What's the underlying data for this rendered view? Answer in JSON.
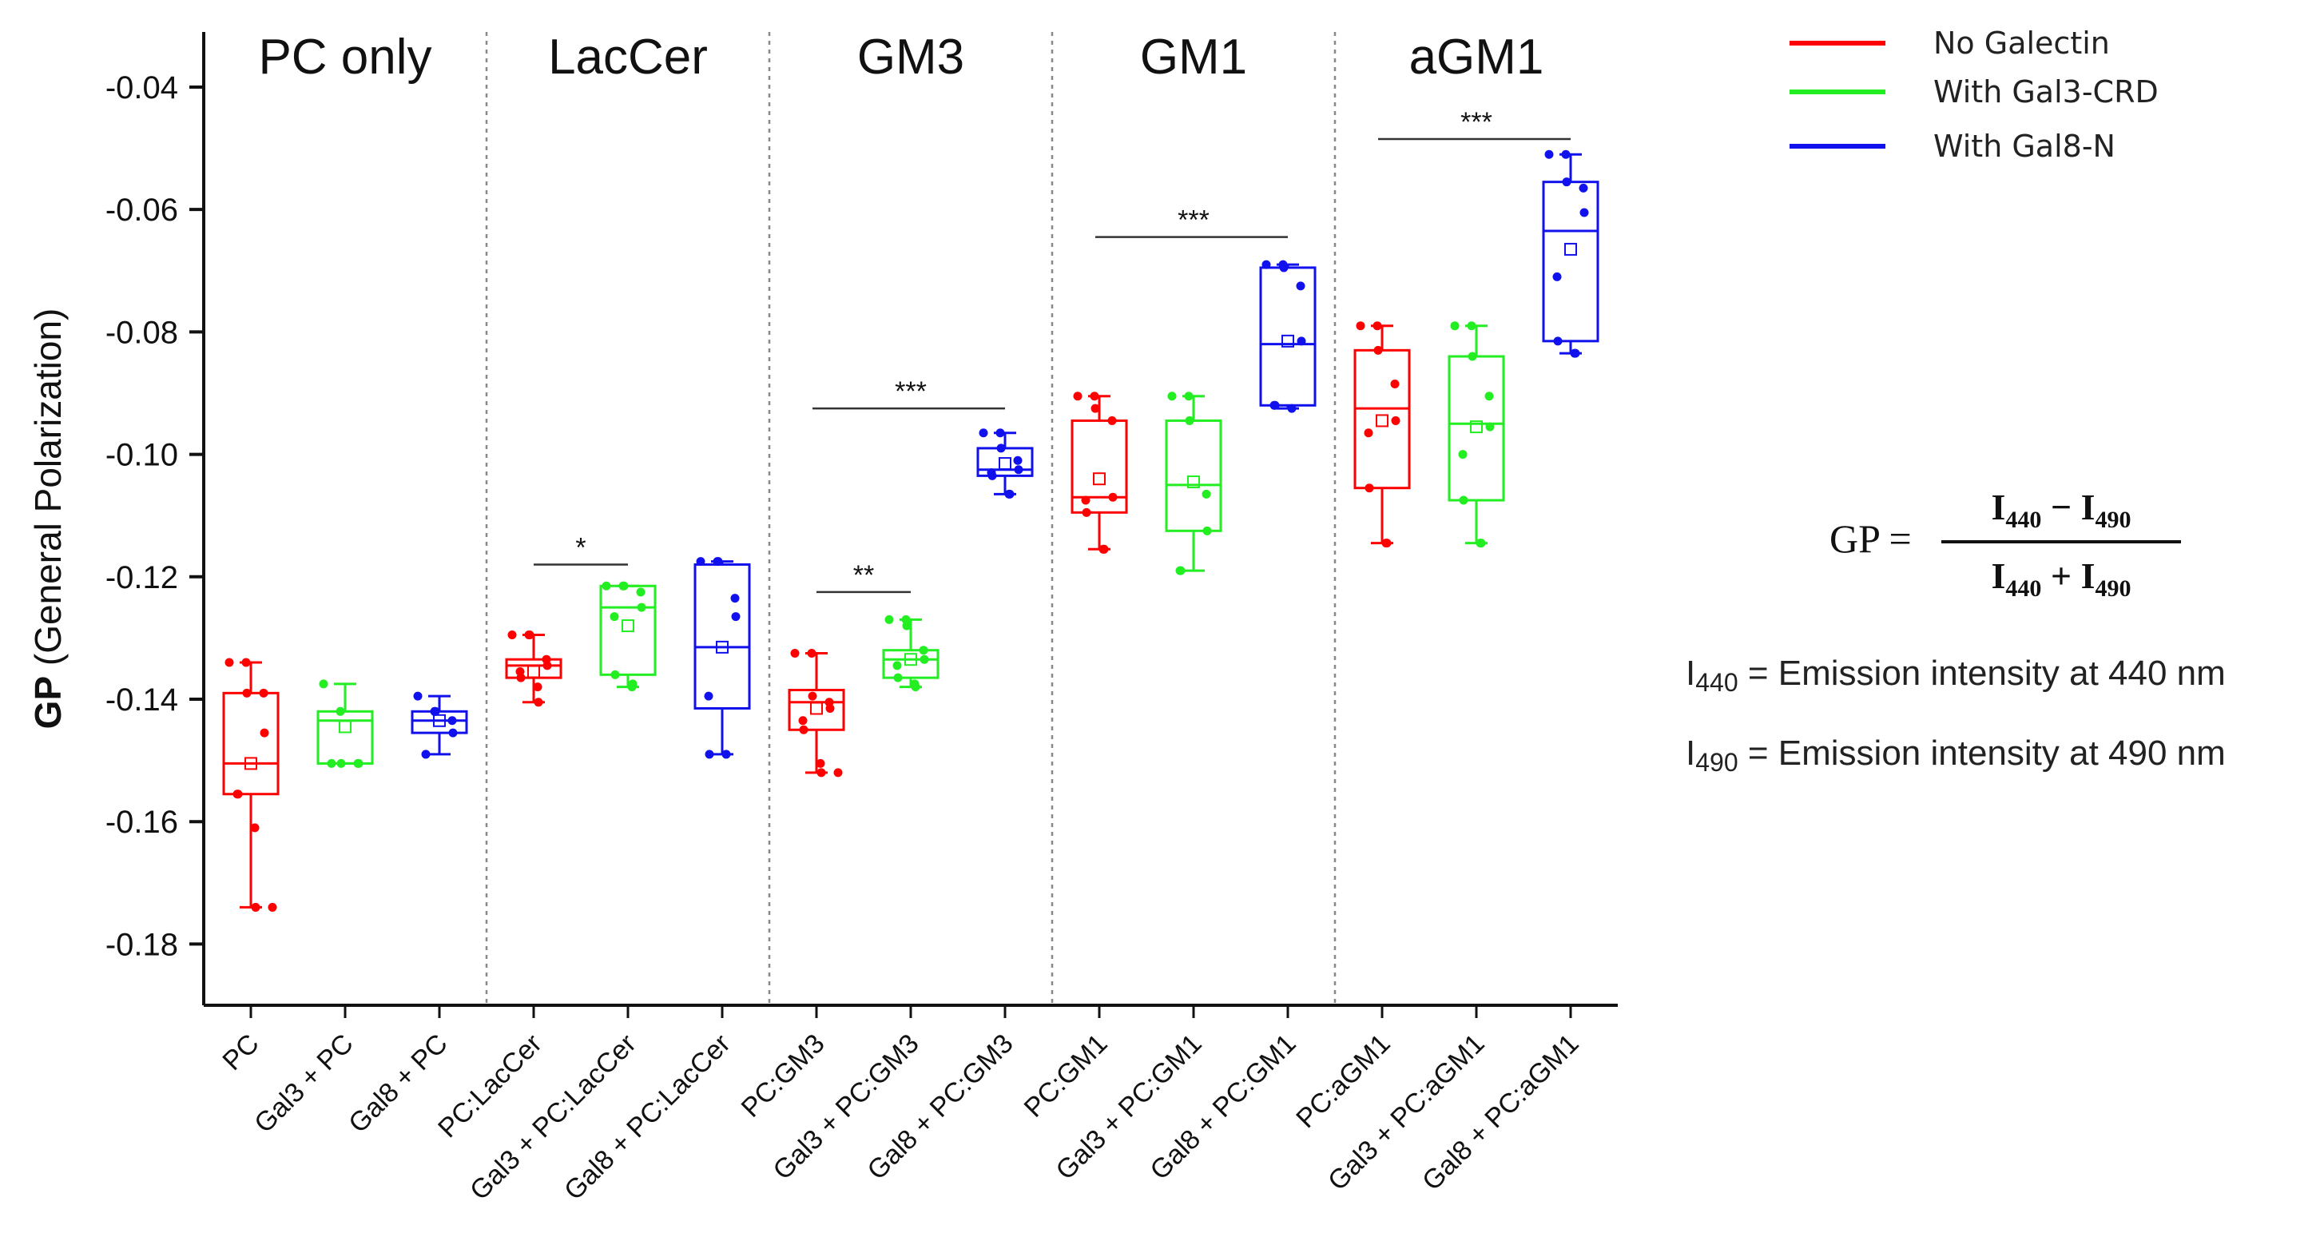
{
  "chart_data": {
    "type": "box",
    "ylabel_bold": "GP",
    "ylabel_rest": "(General Polarization)",
    "ylim": [
      -0.19,
      -0.031
    ],
    "yticks": [
      -0.04,
      -0.06,
      -0.08,
      -0.1,
      -0.12,
      -0.14,
      -0.16,
      -0.18
    ],
    "ytick_labels": [
      "-0.04",
      "-0.06",
      "-0.08",
      "-0.10",
      "-0.12",
      "-0.14",
      "-0.16",
      "-0.18"
    ],
    "groups": [
      "PC only",
      "LacCer",
      "GM3",
      "GM1",
      "aGM1"
    ],
    "colors": {
      "No Galectin": "#ff0000",
      "With Gal3-CRD": "#22ee22",
      "With Gal8-N": "#1111ee"
    },
    "legend": [
      "No Galectin",
      "With Gal3-CRD",
      "With Gal8-N"
    ],
    "categories": [
      {
        "label": "PC",
        "series": "No Galectin",
        "q1": -0.1555,
        "median": -0.1505,
        "q3": -0.139,
        "mean": -0.1505,
        "whisker_low": -0.174,
        "whisker_high": -0.134,
        "points": [
          -0.134,
          -0.134,
          -0.139,
          -0.139,
          -0.1455,
          -0.1555,
          -0.1555,
          -0.161,
          -0.174,
          -0.174
        ]
      },
      {
        "label": "Gal3 + PC",
        "series": "With Gal3-CRD",
        "q1": -0.1505,
        "median": -0.1435,
        "q3": -0.142,
        "mean": -0.1445,
        "whisker_low": -0.1505,
        "whisker_high": -0.1375,
        "points": [
          -0.1375,
          -0.142,
          -0.1505,
          -0.1505,
          -0.1505,
          -0.1505
        ]
      },
      {
        "label": "Gal8 + PC",
        "series": "With Gal8-N",
        "q1": -0.1455,
        "median": -0.1435,
        "q3": -0.142,
        "mean": -0.1435,
        "whisker_low": -0.149,
        "whisker_high": -0.1395,
        "points": [
          -0.1395,
          -0.142,
          -0.142,
          -0.1435,
          -0.1455,
          -0.149
        ]
      },
      {
        "label": "PC:LacCer",
        "series": "No Galectin",
        "q1": -0.1365,
        "median": -0.1345,
        "q3": -0.1335,
        "mean": -0.1355,
        "whisker_low": -0.1405,
        "whisker_high": -0.1295,
        "points": [
          -0.1295,
          -0.1295,
          -0.1295,
          -0.1335,
          -0.1345,
          -0.1355,
          -0.1365,
          -0.138,
          -0.1405
        ]
      },
      {
        "label": "Gal3 + PC:LacCer",
        "series": "With Gal3-CRD",
        "q1": -0.136,
        "median": -0.125,
        "q3": -0.1215,
        "mean": -0.128,
        "whisker_low": -0.138,
        "whisker_high": -0.1215,
        "points": [
          -0.1215,
          -0.1215,
          -0.1215,
          -0.1225,
          -0.125,
          -0.1265,
          -0.136,
          -0.138,
          -0.1375
        ]
      },
      {
        "label": "Gal8 + PC:LacCer",
        "series": "With Gal8-N",
        "q1": -0.1415,
        "median": -0.1315,
        "q3": -0.118,
        "mean": -0.1315,
        "whisker_low": -0.149,
        "whisker_high": -0.1175,
        "points": [
          -0.1175,
          -0.1175,
          -0.1175,
          -0.1235,
          -0.1265,
          -0.1395,
          -0.149,
          -0.149
        ]
      },
      {
        "label": "PC:GM3",
        "series": "No Galectin",
        "q1": -0.145,
        "median": -0.1405,
        "q3": -0.1385,
        "mean": -0.1415,
        "whisker_low": -0.152,
        "whisker_high": -0.1325,
        "points": [
          -0.1325,
          -0.1325,
          -0.1395,
          -0.1405,
          -0.1415,
          -0.1435,
          -0.145,
          -0.1505,
          -0.152,
          -0.152
        ]
      },
      {
        "label": "Gal3 + PC:GM3",
        "series": "With Gal3-CRD",
        "q1": -0.1365,
        "median": -0.1335,
        "q3": -0.132,
        "mean": -0.1335,
        "whisker_low": -0.138,
        "whisker_high": -0.127,
        "points": [
          -0.127,
          -0.127,
          -0.128,
          -0.132,
          -0.1335,
          -0.1345,
          -0.1365,
          -0.1375,
          -0.138
        ]
      },
      {
        "label": "Gal8 + PC:GM3",
        "series": "With Gal8-N",
        "q1": -0.1035,
        "median": -0.1025,
        "q3": -0.099,
        "mean": -0.1015,
        "whisker_low": -0.1065,
        "whisker_high": -0.0965,
        "points": [
          -0.0965,
          -0.0965,
          -0.099,
          -0.101,
          -0.1025,
          -0.103,
          -0.1035,
          -0.1065,
          -0.1065
        ]
      },
      {
        "label": "PC:GM1",
        "series": "No Galectin",
        "q1": -0.1095,
        "median": -0.107,
        "q3": -0.0945,
        "mean": -0.104,
        "whisker_low": -0.1155,
        "whisker_high": -0.0905,
        "points": [
          -0.0905,
          -0.0905,
          -0.0925,
          -0.0945,
          -0.107,
          -0.1075,
          -0.1095,
          -0.1155,
          -0.1155
        ]
      },
      {
        "label": "Gal3 + PC:GM1",
        "series": "With Gal3-CRD",
        "q1": -0.1125,
        "median": -0.105,
        "q3": -0.0945,
        "mean": -0.1045,
        "whisker_low": -0.119,
        "whisker_high": -0.0905,
        "points": [
          -0.0905,
          -0.0905,
          -0.0945,
          -0.1065,
          -0.1125,
          -0.119,
          -0.119
        ]
      },
      {
        "label": "Gal8 + PC:GM1",
        "series": "With Gal8-N",
        "q1": -0.092,
        "median": -0.082,
        "q3": -0.0695,
        "mean": -0.0815,
        "whisker_low": -0.0925,
        "whisker_high": -0.069,
        "points": [
          -0.069,
          -0.069,
          -0.0695,
          -0.0725,
          -0.0815,
          -0.092,
          -0.092,
          -0.0925
        ]
      },
      {
        "label": "PC:aGM1",
        "series": "No Galectin",
        "q1": -0.1055,
        "median": -0.0925,
        "q3": -0.083,
        "mean": -0.0945,
        "whisker_low": -0.1145,
        "whisker_high": -0.079,
        "points": [
          -0.079,
          -0.079,
          -0.083,
          -0.0885,
          -0.0945,
          -0.0965,
          -0.1055,
          -0.1145,
          -0.1145
        ]
      },
      {
        "label": "Gal3 + PC:aGM1",
        "series": "With Gal3-CRD",
        "q1": -0.1075,
        "median": -0.095,
        "q3": -0.084,
        "mean": -0.0955,
        "whisker_low": -0.1145,
        "whisker_high": -0.079,
        "points": [
          -0.079,
          -0.079,
          -0.084,
          -0.0905,
          -0.0955,
          -0.1,
          -0.1075,
          -0.1145,
          -0.1145
        ]
      },
      {
        "label": "Gal8 + PC:aGM1",
        "series": "With Gal8-N",
        "q1": -0.0815,
        "median": -0.0635,
        "q3": -0.0555,
        "mean": -0.0665,
        "whisker_low": -0.0835,
        "whisker_high": -0.051,
        "points": [
          -0.051,
          -0.051,
          -0.0555,
          -0.0565,
          -0.0605,
          -0.071,
          -0.0815,
          -0.0835,
          -0.0835
        ]
      }
    ],
    "significance": [
      {
        "from": 3,
        "to": 4,
        "y": -0.118,
        "label": "*"
      },
      {
        "from": 6,
        "to": 7,
        "y": -0.1225,
        "label": "**"
      },
      {
        "from": 6,
        "to": 8,
        "y": -0.0925,
        "label": "***"
      },
      {
        "from": 9,
        "to": 11,
        "y": -0.0645,
        "label": "***"
      },
      {
        "from": 12,
        "to": 14,
        "y": -0.0485,
        "label": "***"
      }
    ]
  },
  "formula": {
    "lhs": "GP =",
    "num_a": "I",
    "num_a_sub": "440",
    "num_op": " − ",
    "num_b": "I",
    "num_b_sub": "490",
    "den_a": "I",
    "den_a_sub": "440",
    "den_op": " + ",
    "den_b": "I",
    "den_b_sub": "490"
  },
  "definitions": [
    {
      "symbol": "I",
      "sub": "440",
      "text": " = Emission intensity at 440 nm"
    },
    {
      "symbol": "I",
      "sub": "490",
      "text": " = Emission intensity at 490 nm"
    }
  ]
}
